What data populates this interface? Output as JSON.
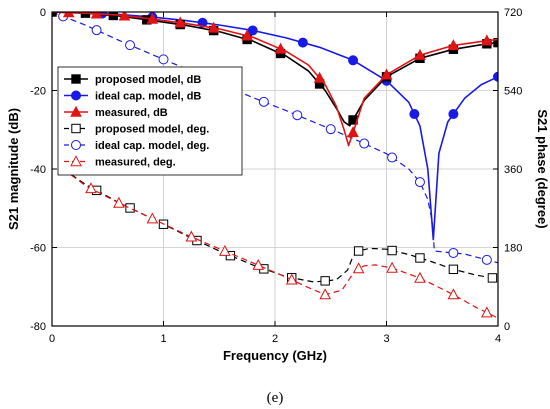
{
  "caption": "(e)",
  "colors": {
    "black": "#000000",
    "blue": "#1a1ae6",
    "red": "#e01414",
    "grid": "#c8c8c8"
  },
  "chart_data": {
    "type": "line",
    "xlabel": "Frequency  (GHz)",
    "ylabel_left": "S21 magnitude  (dB)",
    "ylabel_right": "S21 phase  (degree)",
    "xlim": [
      0,
      4
    ],
    "ylim_left": [
      -80,
      0
    ],
    "ylim_right": [
      0,
      720
    ],
    "x_ticks": [
      "0",
      "1",
      "2",
      "3",
      "4"
    ],
    "y_left_ticks": [
      "0",
      "-20",
      "-40",
      "-60",
      "-80"
    ],
    "y_right_ticks": [
      "720",
      "540",
      "360",
      "180",
      "0"
    ],
    "grid": true,
    "legend_position": "middle-left",
    "series": [
      {
        "name": "proposed model, dB",
        "axis": "left",
        "color": "#000000",
        "dash": "solid",
        "marker": "square",
        "filled": true,
        "x": [
          0,
          0.3,
          0.6,
          0.9,
          1.2,
          1.5,
          1.8,
          2.1,
          2.3,
          2.45,
          2.55,
          2.62,
          2.67,
          2.72,
          2.8,
          3.0,
          3.3,
          3.6,
          3.9,
          4.0
        ],
        "y": [
          0,
          -0.3,
          -1.0,
          -2.2,
          -3.4,
          -5.0,
          -7.4,
          -11.2,
          -15.0,
          -20.0,
          -24.5,
          -28.0,
          -29.0,
          -26.5,
          -22.5,
          -16.5,
          -11.8,
          -9.5,
          -8.1,
          -7.8
        ]
      },
      {
        "name": "ideal cap. model, dB",
        "axis": "left",
        "color": "#1a1ae6",
        "dash": "solid",
        "marker": "circle",
        "filled": true,
        "x": [
          0,
          0.3,
          0.6,
          0.9,
          1.2,
          1.5,
          1.8,
          2.1,
          2.4,
          2.7,
          3.0,
          3.2,
          3.3,
          3.37,
          3.42,
          3.47,
          3.55,
          3.7,
          3.85,
          4.0
        ],
        "y": [
          0,
          -0.2,
          -0.6,
          -1.3,
          -2.2,
          -3.3,
          -4.7,
          -6.6,
          -9.0,
          -12.3,
          -17.5,
          -23.0,
          -29.0,
          -40.0,
          -58.0,
          -36.0,
          -28.0,
          -22.0,
          -18.5,
          -16.5
        ]
      },
      {
        "name": "measured, dB",
        "axis": "left",
        "color": "#e01414",
        "dash": "solid",
        "marker": "triangle",
        "filled": true,
        "x": [
          0,
          0.3,
          0.6,
          0.9,
          1.2,
          1.5,
          1.8,
          2.1,
          2.3,
          2.45,
          2.55,
          2.62,
          2.66,
          2.72,
          2.8,
          3.0,
          3.3,
          3.6,
          3.9,
          4.0
        ],
        "y": [
          0,
          -0.3,
          -0.8,
          -1.8,
          -2.9,
          -4.3,
          -6.4,
          -10.0,
          -13.5,
          -18.5,
          -24.0,
          -30.0,
          -34.0,
          -29.0,
          -22.0,
          -16.0,
          -11.0,
          -8.5,
          -7.3,
          -7.0
        ]
      },
      {
        "name": "proposed model, deg.",
        "axis": "right",
        "color": "#000000",
        "dash": "dashed",
        "marker": "square",
        "filled": false,
        "x": [
          0.1,
          0.3,
          0.6,
          0.9,
          1.2,
          1.5,
          1.8,
          2.1,
          2.35,
          2.55,
          2.65,
          2.7,
          2.75,
          2.85,
          3.0,
          3.2,
          3.4,
          3.6,
          3.8,
          4.0
        ],
        "y": [
          360,
          325,
          283,
          246,
          208,
          172,
          140,
          113,
          101,
          106,
          128,
          160,
          172,
          178,
          176,
          164,
          148,
          130,
          117,
          108
        ]
      },
      {
        "name": "ideal cap. model, deg.",
        "axis": "right",
        "color": "#1a1ae6",
        "dash": "dashed",
        "marker": "circle",
        "filled": false,
        "x": [
          0,
          0.3,
          0.6,
          0.9,
          1.2,
          1.5,
          1.8,
          2.1,
          2.4,
          2.7,
          3.0,
          3.2,
          3.3,
          3.37,
          3.41,
          3.43,
          3.5,
          3.7,
          3.85,
          4.0
        ],
        "y": [
          720,
          690,
          655,
          622,
          590,
          557,
          524,
          494,
          462,
          430,
          395,
          360,
          330,
          290,
          240,
          172,
          170,
          165,
          155,
          145
        ]
      },
      {
        "name": "measured, deg.",
        "axis": "right",
        "color": "#e01414",
        "dash": "dashed",
        "marker": "triangle",
        "filled": false,
        "x": [
          0.1,
          0.3,
          0.6,
          0.9,
          1.2,
          1.5,
          1.8,
          2.1,
          2.3,
          2.45,
          2.6,
          2.72,
          2.8,
          2.9,
          3.05,
          3.3,
          3.6,
          3.8,
          4.0
        ],
        "y": [
          360,
          322,
          282,
          246,
          210,
          177,
          145,
          112,
          88,
          72,
          82,
          128,
          138,
          140,
          133,
          110,
          72,
          43,
          18
        ]
      }
    ],
    "marker_positions": {
      "proposed model, dB": [
        0,
        0.3,
        0.55,
        0.85,
        1.15,
        1.45,
        1.75,
        2.05,
        2.4,
        2.7,
        3.0,
        3.3,
        3.6,
        3.9,
        4.0
      ],
      "ideal cap. model, dB": [
        0,
        0.45,
        0.9,
        1.35,
        1.8,
        2.25,
        2.7,
        3.0,
        3.25,
        3.6,
        4.0
      ],
      "measured, dB": [
        0.15,
        0.4,
        0.65,
        0.9,
        1.15,
        1.45,
        1.75,
        2.05,
        2.4,
        2.7,
        3.0,
        3.3,
        3.6,
        3.9
      ],
      "proposed model, deg.": [
        0.1,
        0.4,
        0.7,
        1.0,
        1.3,
        1.6,
        1.9,
        2.15,
        2.45,
        2.75,
        3.05,
        3.3,
        3.6,
        3.95
      ],
      "ideal cap. model, deg.": [
        0.1,
        0.4,
        0.7,
        1.0,
        1.3,
        1.6,
        1.9,
        2.2,
        2.5,
        2.8,
        3.05,
        3.3,
        3.6,
        3.9
      ],
      "measured, deg.": [
        0.1,
        0.35,
        0.6,
        0.9,
        1.25,
        1.55,
        1.85,
        2.15,
        2.45,
        2.75,
        3.05,
        3.3,
        3.6,
        3.9
      ]
    }
  }
}
